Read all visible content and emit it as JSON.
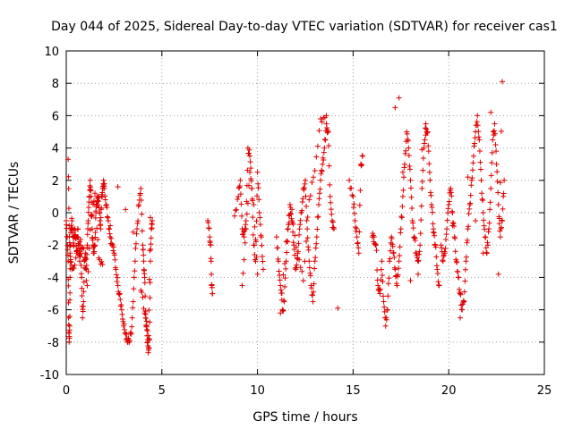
{
  "chart_data": {
    "type": "scatter",
    "title": "Day 044 of 2025, Sidereal Day-to-day VTEC variation (SDTVAR) for receiver cas1",
    "xlabel": "GPS time / hours",
    "ylabel": "SDTVAR / TECUs",
    "xlim": [
      0,
      25
    ],
    "ylim": [
      -10,
      10
    ],
    "xticks": [
      "0",
      "5",
      "10",
      "15",
      "20",
      "25"
    ],
    "yticks": [
      "-10",
      "-8",
      "-6",
      "-4",
      "-2",
      "0",
      "2",
      "4",
      "6",
      "8",
      "10"
    ],
    "grid": true,
    "marker": "plus",
    "color": "#e00000",
    "series": [
      {
        "name": "SDTVAR",
        "x": [
          0.0,
          0.05,
          0.1,
          0.12,
          0.15,
          0.18,
          0.2,
          0.22,
          0.25,
          0.3,
          0.35,
          0.4,
          0.45,
          0.5,
          0.55,
          0.6,
          0.65,
          0.7,
          0.75,
          0.8,
          0.85,
          0.9,
          0.95,
          1.0,
          1.05,
          1.1,
          1.15,
          1.2,
          1.25,
          1.3,
          1.35,
          1.4,
          1.45,
          1.5,
          1.55,
          1.6,
          1.65,
          1.7,
          1.75,
          1.8,
          1.85,
          1.9,
          1.95,
          2.0,
          2.1,
          2.2,
          2.3,
          2.4,
          2.5,
          2.6,
          2.7,
          2.8,
          2.9,
          3.0,
          3.1,
          3.2,
          3.3,
          3.4,
          3.5,
          3.6,
          3.7,
          3.8,
          3.9,
          4.0,
          4.05,
          4.1,
          4.15,
          4.2,
          4.25,
          4.3,
          4.35,
          4.4,
          4.45,
          4.5,
          0.1,
          0.15,
          0.2,
          0.3,
          0.5,
          0.7,
          0.9,
          1.1,
          1.3,
          1.5,
          1.7,
          1.9,
          2.3,
          2.7,
          3.1,
          3.5,
          3.9,
          4.1,
          4.3,
          4.4,
          7.4,
          7.5,
          7.55,
          7.6,
          7.65,
          8.8,
          9.0,
          9.1,
          9.2,
          9.3,
          9.4,
          9.5,
          9.6,
          9.7,
          9.8,
          9.9,
          10.0,
          10.1,
          10.2,
          10.3,
          9.2,
          9.4,
          9.6,
          9.8,
          10.0,
          11.0,
          11.1,
          11.2,
          11.3,
          11.4,
          11.5,
          11.6,
          11.7,
          11.8,
          11.9,
          12.0,
          12.1,
          12.2,
          12.3,
          12.4,
          12.5,
          12.6,
          12.7,
          12.8,
          12.9,
          13.0,
          13.1,
          13.2,
          13.3,
          13.4,
          13.5,
          13.6,
          13.7,
          13.8,
          13.9,
          14.0,
          11.2,
          11.5,
          11.8,
          12.1,
          12.4,
          12.7,
          13.0,
          13.3,
          13.6,
          14.2,
          14.8,
          15.0,
          15.1,
          15.2,
          15.3,
          15.4,
          15.5,
          16.0,
          16.1,
          16.2,
          16.3,
          16.4,
          16.5,
          16.6,
          16.7,
          16.8,
          16.9,
          17.0,
          17.1,
          17.2,
          17.3,
          17.4,
          17.5,
          17.6,
          17.7,
          17.8,
          17.9,
          18.0,
          18.1,
          18.2,
          18.3,
          18.4,
          18.5,
          18.6,
          18.7,
          18.8,
          18.9,
          19.0,
          19.1,
          19.2,
          19.3,
          19.4,
          19.5,
          17.2,
          17.6,
          18.0,
          18.4,
          18.8,
          19.2,
          17.4,
          18.6,
          19.6,
          19.7,
          19.8,
          19.9,
          20.0,
          20.1,
          20.2,
          20.3,
          20.4,
          20.5,
          20.6,
          20.7,
          20.8,
          20.9,
          21.0,
          21.1,
          21.2,
          21.3,
          21.4,
          21.5,
          21.6,
          21.7,
          21.8,
          21.9,
          22.0,
          22.1,
          22.2,
          22.3,
          22.4,
          22.5,
          22.6,
          22.7,
          22.8,
          22.9,
          20.2,
          20.6,
          21.0,
          21.4,
          21.8,
          22.2,
          22.6,
          22.8
        ],
        "y": [
          -0.5,
          -1.5,
          -3.0,
          -6.5,
          -8.0,
          -7.0,
          -4.0,
          -2.0,
          -1.0,
          -0.5,
          -1.5,
          -2.0,
          -1.0,
          -1.5,
          -2.5,
          -1.0,
          -2.0,
          -3.0,
          -2.0,
          -4.0,
          -6.5,
          -5.5,
          -3.0,
          -2.5,
          -3.5,
          -2.0,
          -0.5,
          1.0,
          2.0,
          1.0,
          -1.0,
          -2.0,
          -2.5,
          -2.0,
          0.0,
          1.0,
          0.5,
          1.0,
          0.0,
          -1.0,
          1.0,
          1.5,
          2.0,
          1.5,
          0.5,
          -0.5,
          -1.5,
          -2.0,
          -2.5,
          -3.5,
          -4.5,
          -5.0,
          -6.0,
          -7.0,
          -7.5,
          -8.0,
          -8.0,
          -7.5,
          -5.5,
          -3.0,
          -1.0,
          0.5,
          1.5,
          -2.0,
          -3.0,
          -4.0,
          -6.5,
          -7.0,
          -8.0,
          -8.5,
          -7.8,
          -3.0,
          -1.0,
          -0.5,
          3.3,
          -0.8,
          -2.5,
          -3.5,
          -2.8,
          -1.8,
          -2.2,
          -4.5,
          -0.2,
          1.2,
          -2.8,
          -3.2,
          -0.8,
          1.6,
          0.2,
          -1.2,
          -4.8,
          -6.2,
          -7.6,
          -0.3,
          -0.5,
          -1.5,
          -2.0,
          -4.5,
          -5.0,
          -0.2,
          1.0,
          2.0,
          -1.0,
          -1.5,
          -0.5,
          4.0,
          3.5,
          1.5,
          -2.0,
          -3.0,
          2.5,
          0.0,
          -1.5,
          -3.5,
          -4.5,
          -1.0,
          2.5,
          0.5,
          -3.8,
          -1.5,
          -3.0,
          -4.5,
          -6.0,
          -5.5,
          -3.0,
          -1.0,
          0.5,
          -0.5,
          -2.0,
          -3.5,
          -2.5,
          -1.0,
          0.0,
          1.5,
          2.0,
          -1.0,
          -3.0,
          -4.5,
          -5.5,
          -3.0,
          -1.5,
          0.5,
          2.0,
          3.0,
          4.0,
          5.5,
          5.0,
          1.0,
          -0.5,
          -1.0,
          -6.2,
          -1.8,
          0.2,
          -2.8,
          -4.2,
          0.8,
          2.6,
          5.8,
          6.0,
          -5.9,
          2.0,
          1.0,
          -0.5,
          -1.5,
          -2.5,
          3.0,
          3.5,
          -1.5,
          -1.5,
          -2.0,
          -4.5,
          -5.0,
          -3.0,
          -5.5,
          -7.0,
          -6.0,
          -3.0,
          -1.5,
          -2.5,
          -3.5,
          -4.5,
          -3.0,
          -1.0,
          1.0,
          3.0,
          5.0,
          4.0,
          2.0,
          -0.5,
          -1.5,
          -2.5,
          -3.0,
          -2.0,
          1.5,
          4.0,
          5.5,
          5.0,
          2.5,
          0.5,
          -1.0,
          -2.0,
          -3.5,
          -4.5,
          6.5,
          2.5,
          -4.2,
          -3.8,
          4.8,
          -1.2,
          7.1,
          3.9,
          -2.0,
          -3.0,
          -2.5,
          -1.0,
          0.5,
          1.5,
          0.0,
          -1.5,
          -3.0,
          -4.0,
          -5.0,
          -6.0,
          -5.5,
          -3.0,
          -1.0,
          0.5,
          2.0,
          3.5,
          5.0,
          6.0,
          4.5,
          2.0,
          0.0,
          -1.5,
          -2.5,
          -1.0,
          1.5,
          4.5,
          5.5,
          3.0,
          0.5,
          -1.5,
          -0.5,
          2.0,
          -0.8,
          -6.5,
          2.2,
          -0.5,
          -2.5,
          6.2,
          -3.8,
          8.1
        ]
      }
    ]
  }
}
